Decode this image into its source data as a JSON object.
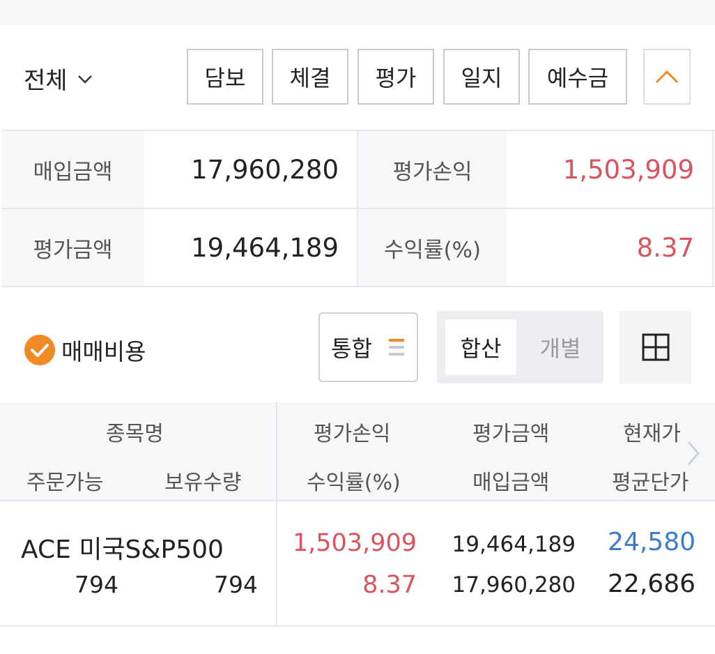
{
  "filter": {
    "account": "전체",
    "buttons": [
      "담보",
      "체결",
      "평가",
      "일지",
      "예수금"
    ]
  },
  "summary": {
    "purchase_label": "매입금액",
    "purchase_value": "17,960,280",
    "pl_label": "평가손익",
    "pl_value": "1,503,909",
    "eval_label": "평가금액",
    "eval_value": "19,464,189",
    "rate_label": "수익률(%)",
    "rate_value": "8.37"
  },
  "options": {
    "fee_label": "매매비용",
    "fee_checked": true,
    "merge_label": "통합",
    "segment_on": "합산",
    "segment_off": "개별"
  },
  "table": {
    "headers": {
      "name": "종목명",
      "orderable": "주문가능",
      "holding": "보유수량",
      "pl": "평가손익",
      "rate": "수익률(%)",
      "eval": "평가금액",
      "buy": "매입금액",
      "current": "현재가",
      "avg": "평균단가"
    },
    "rows": [
      {
        "name": "ACE 미국S&P500",
        "orderable": "794",
        "holding": "794",
        "pl": "1,503,909",
        "rate": "8.37",
        "eval": "19,464,189",
        "buy": "17,960,280",
        "current": "24,580",
        "avg": "22,686"
      }
    ]
  },
  "colors": {
    "positive": "#d9545e",
    "price": "#3a7ccf",
    "accent": "#f08a24"
  }
}
